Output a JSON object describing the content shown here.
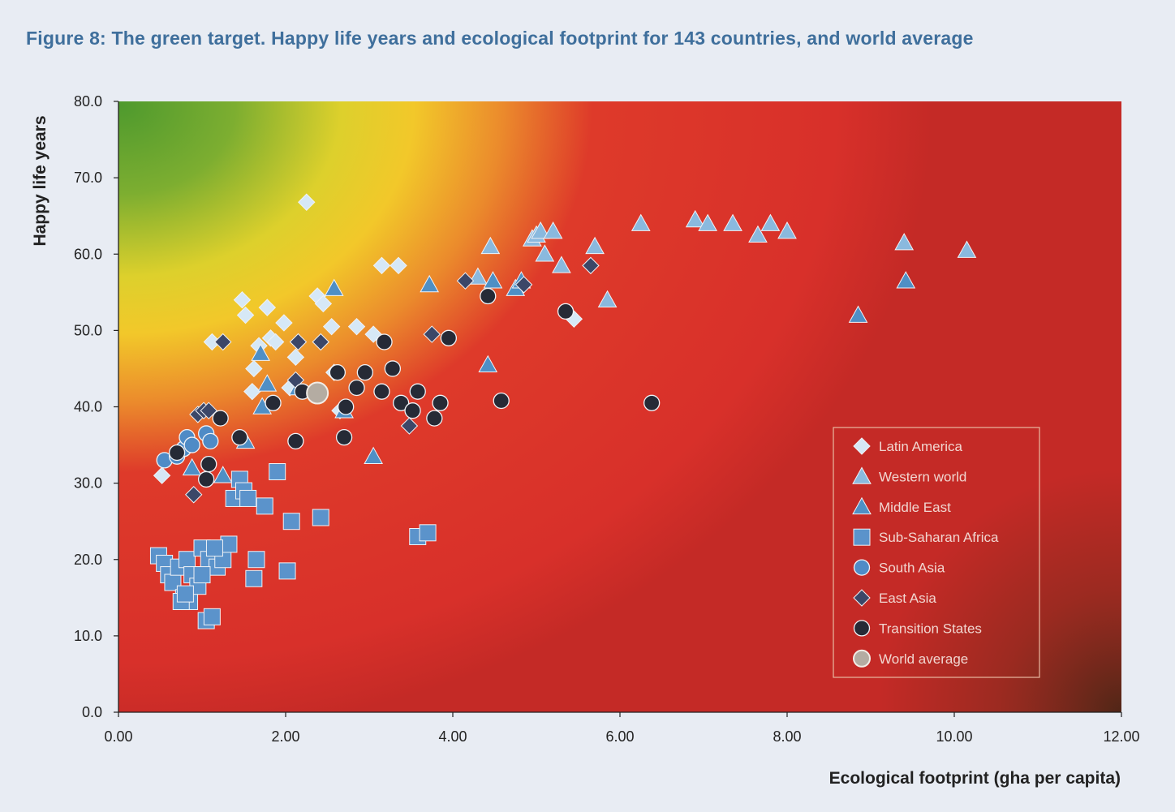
{
  "figure_title": "Figure 8: The green target. Happy life years and ecological footprint for 143 countries, and world average",
  "colors": {
    "latin_america": "#d6e8f6",
    "western_world": "#8ab9de",
    "middle_east": "#4f8fc5",
    "sub_saharan_africa": "#5b93cb",
    "south_asia": "#4f8bc6",
    "east_asia": "#3c4768",
    "transition_states": "#262a36",
    "world_average": "#b4aca2"
  },
  "chart_data": {
    "type": "scatter",
    "title": "Figure 8: The green target. Happy life years and ecological footprint for 143 countries, and world average",
    "xlabel": "Ecological footprint (gha per capita)",
    "ylabel": "Happy life years",
    "xlim": [
      0,
      12
    ],
    "ylim": [
      0,
      80
    ],
    "xticks": [
      "0.00",
      "2.00",
      "4.00",
      "6.00",
      "8.00",
      "10.00",
      "12.00"
    ],
    "yticks": [
      "0.0",
      "10.0",
      "20.0",
      "30.0",
      "40.0",
      "50.0",
      "60.0",
      "70.0",
      "80.0"
    ],
    "grid": false,
    "legend_position": "bottom-right",
    "series": [
      {
        "name": "Latin America",
        "marker": "diamond",
        "color_key": "latin_america",
        "x": [
          0.52,
          1.12,
          1.48,
          1.52,
          1.62,
          1.78,
          1.82,
          1.88,
          1.98,
          2.05,
          2.12,
          2.25,
          2.38,
          2.45,
          2.55,
          2.58,
          2.65,
          2.85,
          3.05,
          3.15,
          3.35,
          5.45,
          1.6,
          1.68
        ],
        "y": [
          31,
          48.5,
          54,
          52,
          45,
          53,
          49,
          48.5,
          51,
          42.5,
          46.5,
          66.8,
          54.5,
          53.5,
          50.5,
          44.5,
          39.5,
          50.5,
          49.5,
          58.5,
          58.5,
          51.5,
          42,
          48
        ]
      },
      {
        "name": "Western world",
        "marker": "triangle",
        "color_key": "western_world",
        "x": [
          4.3,
          4.45,
          4.95,
          5.0,
          5.05,
          5.1,
          5.2,
          5.3,
          5.7,
          5.85,
          6.25,
          6.9,
          7.05,
          7.35,
          7.65,
          7.8,
          8.0,
          9.4,
          10.15
        ],
        "y": [
          57,
          61,
          62,
          62.5,
          63,
          60,
          63,
          58.5,
          61,
          54,
          64,
          64.5,
          64,
          64,
          62.5,
          64,
          63,
          61.5,
          60.5
        ]
      },
      {
        "name": "Middle East",
        "marker": "triangle",
        "color_key": "middle_east",
        "x": [
          0.88,
          1.25,
          1.52,
          1.7,
          1.72,
          1.78,
          2.15,
          2.58,
          2.7,
          3.05,
          3.72,
          4.42,
          4.48,
          4.75,
          4.82,
          8.85,
          9.42
        ],
        "y": [
          32,
          31,
          35.5,
          47,
          40,
          43,
          42.5,
          55.5,
          39.5,
          33.5,
          56,
          45.5,
          56.5,
          55.5,
          56.5,
          52,
          56.5
        ]
      },
      {
        "name": "Sub-Saharan Africa",
        "marker": "square",
        "color_key": "sub_saharan_africa",
        "x": [
          0.48,
          0.55,
          0.6,
          0.65,
          0.72,
          0.78,
          0.82,
          0.85,
          0.88,
          0.95,
          1.0,
          1.05,
          1.08,
          1.12,
          1.18,
          1.25,
          1.32,
          1.38,
          1.45,
          1.5,
          1.55,
          1.62,
          1.65,
          1.75,
          1.9,
          2.02,
          2.07,
          2.42,
          3.58,
          3.7,
          0.75,
          0.8,
          1.0,
          1.15
        ],
        "y": [
          20.5,
          19.5,
          18,
          17,
          19,
          15,
          20,
          14.5,
          18,
          16.5,
          21.5,
          12,
          20,
          12.5,
          19,
          20,
          22,
          28,
          30.5,
          29,
          28,
          17.5,
          20,
          27,
          31.5,
          18.5,
          25,
          25.5,
          23,
          23.5,
          14.5,
          15.5,
          18,
          21.5
        ]
      },
      {
        "name": "South Asia",
        "marker": "circle",
        "color_key": "south_asia",
        "x": [
          0.55,
          0.7,
          0.78,
          0.82,
          0.88,
          1.05,
          1.1
        ],
        "y": [
          33,
          33.5,
          34.5,
          36,
          35,
          36.5,
          35.5
        ]
      },
      {
        "name": "East Asia",
        "marker": "diamond",
        "color_key": "east_asia",
        "x": [
          0.9,
          0.95,
          1.02,
          1.08,
          1.25,
          2.12,
          2.15,
          2.42,
          3.48,
          3.75,
          4.15,
          4.85,
          5.65
        ],
        "y": [
          28.5,
          39,
          39.5,
          39.5,
          48.5,
          43.5,
          48.5,
          48.5,
          37.5,
          49.5,
          56.5,
          56,
          58.5
        ]
      },
      {
        "name": "Transition States",
        "marker": "circle",
        "color_key": "transition_states",
        "x": [
          0.7,
          1.05,
          1.08,
          1.22,
          1.45,
          1.85,
          2.12,
          2.2,
          2.62,
          2.7,
          2.72,
          2.85,
          2.95,
          3.15,
          3.18,
          3.28,
          3.38,
          3.52,
          3.58,
          3.78,
          3.85,
          3.95,
          4.42,
          4.58,
          5.35,
          6.38
        ],
        "y": [
          34,
          30.5,
          32.5,
          38.5,
          36,
          40.5,
          35.5,
          42,
          44.5,
          36,
          40,
          42.5,
          44.5,
          42,
          48.5,
          45,
          40.5,
          39.5,
          42,
          38.5,
          40.5,
          49,
          54.5,
          40.8,
          52.5,
          40.5
        ]
      },
      {
        "name": "World average",
        "marker": "circle",
        "color_key": "world_average",
        "x": [
          2.38
        ],
        "y": [
          41.8
        ]
      }
    ]
  }
}
